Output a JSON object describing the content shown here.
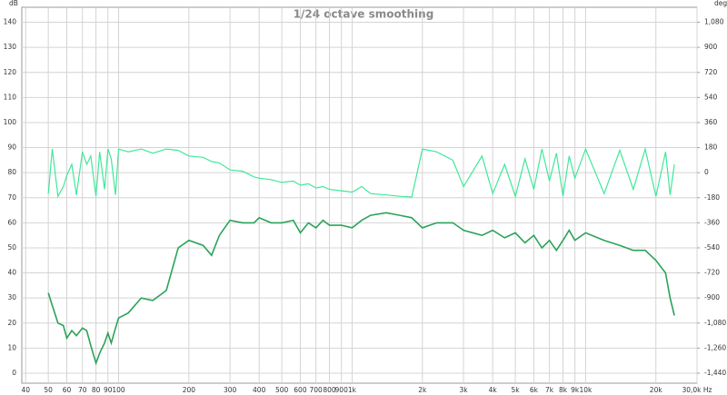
{
  "chart_data": {
    "type": "line",
    "title": "1/24 octave smoothing",
    "y_label": "dB",
    "y2_label": "deg",
    "xscale": "log",
    "grid": true,
    "xlim": [
      38.5,
      30000
    ],
    "xticks": [
      40,
      50,
      60,
      70,
      80,
      90,
      100,
      200,
      300,
      400,
      500,
      600,
      700,
      800,
      900,
      {
        "value": 1000,
        "label": "1k"
      },
      {
        "value": 2000,
        "label": "2k"
      },
      {
        "value": 3000,
        "label": "3k"
      },
      {
        "value": 4000,
        "label": "4k"
      },
      {
        "value": 5000,
        "label": "5k"
      },
      {
        "value": 6000,
        "label": "6k"
      },
      {
        "value": 7000,
        "label": "7k"
      },
      {
        "value": 8000,
        "label": "8k"
      },
      {
        "value": 9000,
        "label": "9k"
      },
      {
        "value": 10000,
        "label": "10k"
      },
      {
        "value": 20000,
        "label": "20k"
      },
      {
        "value": 30000,
        "label": "30,0k Hz"
      }
    ],
    "ylim": [
      -4,
      146
    ],
    "yticks": [
      0,
      10,
      20,
      30,
      40,
      50,
      60,
      70,
      80,
      90,
      100,
      110,
      120,
      130,
      140
    ],
    "y2lim": [
      -1512,
      1188
    ],
    "y2ticks": [
      {
        "value": 1080,
        "label": "1,080"
      },
      900,
      720,
      540,
      360,
      180,
      0,
      -180,
      -360,
      -540,
      -720,
      -900,
      {
        "value": -1080,
        "label": "-1,080"
      },
      {
        "value": -1260,
        "label": "-1,260"
      },
      {
        "value": -1440,
        "label": "-1,440"
      }
    ],
    "x": [
      50,
      52,
      55,
      58,
      60,
      63,
      66,
      70,
      73,
      76,
      80,
      83,
      87,
      90,
      93,
      97,
      100,
      110,
      125,
      140,
      160,
      180,
      200,
      230,
      250,
      270,
      300,
      340,
      380,
      400,
      450,
      500,
      560,
      600,
      650,
      700,
      750,
      800,
      900,
      1000,
      1100,
      1200,
      1400,
      1600,
      1800,
      2000,
      2300,
      2700,
      3000,
      3600,
      4000,
      4500,
      5000,
      5500,
      6000,
      6500,
      7000,
      7500,
      8000,
      8500,
      9000,
      10000,
      12000,
      14000,
      16000,
      18000,
      20000,
      22000,
      23000,
      24000
    ],
    "series": [
      {
        "color": "#2aa35a",
        "values": [
          32,
          27,
          20,
          19,
          14,
          17,
          15,
          18,
          17,
          11,
          4,
          8,
          12,
          16,
          12,
          18,
          22,
          24,
          30,
          29,
          33,
          50,
          53,
          51,
          47,
          55,
          61,
          60,
          60,
          62,
          60,
          60,
          61,
          56,
          60,
          58,
          61,
          59,
          59,
          58,
          61,
          63,
          64,
          63,
          62,
          58,
          60,
          60,
          57,
          55,
          57,
          54,
          56,
          52,
          55,
          50,
          53,
          49,
          53,
          57,
          53,
          56,
          53,
          51,
          49,
          49,
          45,
          40,
          30,
          23
        ]
      },
      {
        "color": "#40e89a",
        "axis": "y2",
        "values": [
          -150,
          170,
          -170,
          -100,
          -20,
          60,
          -160,
          150,
          60,
          120,
          -170,
          150,
          -120,
          170,
          100,
          -160,
          170,
          150,
          170,
          140,
          170,
          160,
          120,
          110,
          80,
          70,
          20,
          10,
          -30,
          -40,
          -50,
          -70,
          -60,
          -90,
          -80,
          -110,
          -100,
          -120,
          -130,
          -140,
          -100,
          -150,
          -160,
          -170,
          -175,
          170,
          150,
          90,
          -100,
          120,
          -150,
          60,
          -170,
          100,
          -120,
          170,
          -60,
          140,
          -170,
          120,
          -40,
          170,
          -150,
          160,
          -120,
          170,
          -170,
          150,
          -160,
          60
        ]
      }
    ]
  }
}
